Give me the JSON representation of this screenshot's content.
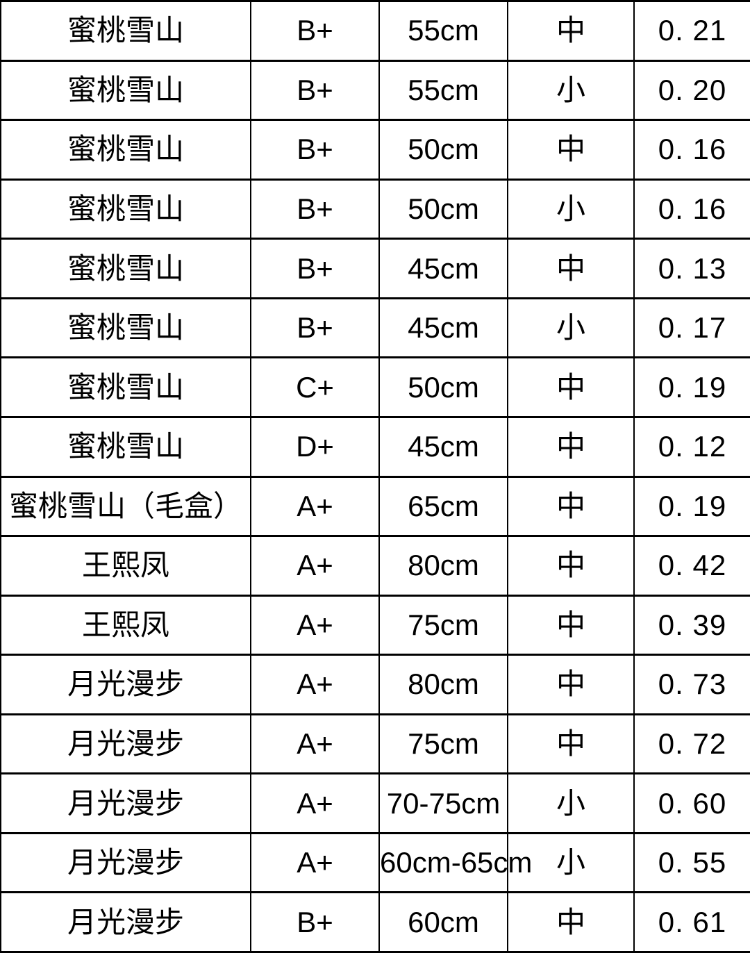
{
  "chart_data": {
    "type": "table",
    "title": "",
    "rows": [
      [
        "蜜桃雪山",
        "B+",
        "55cm",
        "中",
        "0. 21"
      ],
      [
        "蜜桃雪山",
        "B+",
        "55cm",
        "小",
        "0. 20"
      ],
      [
        "蜜桃雪山",
        "B+",
        "50cm",
        "中",
        "0. 16"
      ],
      [
        "蜜桃雪山",
        "B+",
        "50cm",
        "小",
        "0. 16"
      ],
      [
        "蜜桃雪山",
        "B+",
        "45cm",
        "中",
        "0. 13"
      ],
      [
        "蜜桃雪山",
        "B+",
        "45cm",
        "小",
        "0. 17"
      ],
      [
        "蜜桃雪山",
        "C+",
        "50cm",
        "中",
        "0. 19"
      ],
      [
        "蜜桃雪山",
        "D+",
        "45cm",
        "中",
        "0. 12"
      ],
      [
        "蜜桃雪山（毛盒）",
        "A+",
        "65cm",
        "中",
        "0. 19"
      ],
      [
        "王熙凤",
        "A+",
        "80cm",
        "中",
        "0. 42"
      ],
      [
        "王熙凤",
        "A+",
        "75cm",
        "中",
        "0. 39"
      ],
      [
        "月光漫步",
        "A+",
        "80cm",
        "中",
        "0. 73"
      ],
      [
        "月光漫步",
        "A+",
        "75cm",
        "中",
        "0. 72"
      ],
      [
        "月光漫步",
        "A+",
        "70-75cm",
        "小",
        "0. 60"
      ],
      [
        "月光漫步",
        "A+",
        "60cm-65cm",
        "小",
        "0. 55"
      ],
      [
        "月光漫步",
        "B+",
        "60cm",
        "中",
        "0. 61"
      ]
    ],
    "layout": {
      "grid": true,
      "header_row": false,
      "border_color": "#000000",
      "background_color": "#ffffff",
      "text_color": "#000000"
    }
  }
}
